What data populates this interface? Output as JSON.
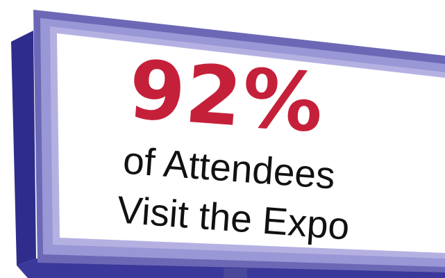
{
  "sign": {
    "stat": "92%",
    "line1": "of Attendees",
    "line2": "Visit the Expo"
  },
  "colors": {
    "frame_light": "#8a87c9",
    "frame_mid": "#6c68b6",
    "frame_dark": "#2e2d8c",
    "panel": "#ffffff",
    "stat_text": "#c5203a",
    "body_text": "#111111"
  }
}
